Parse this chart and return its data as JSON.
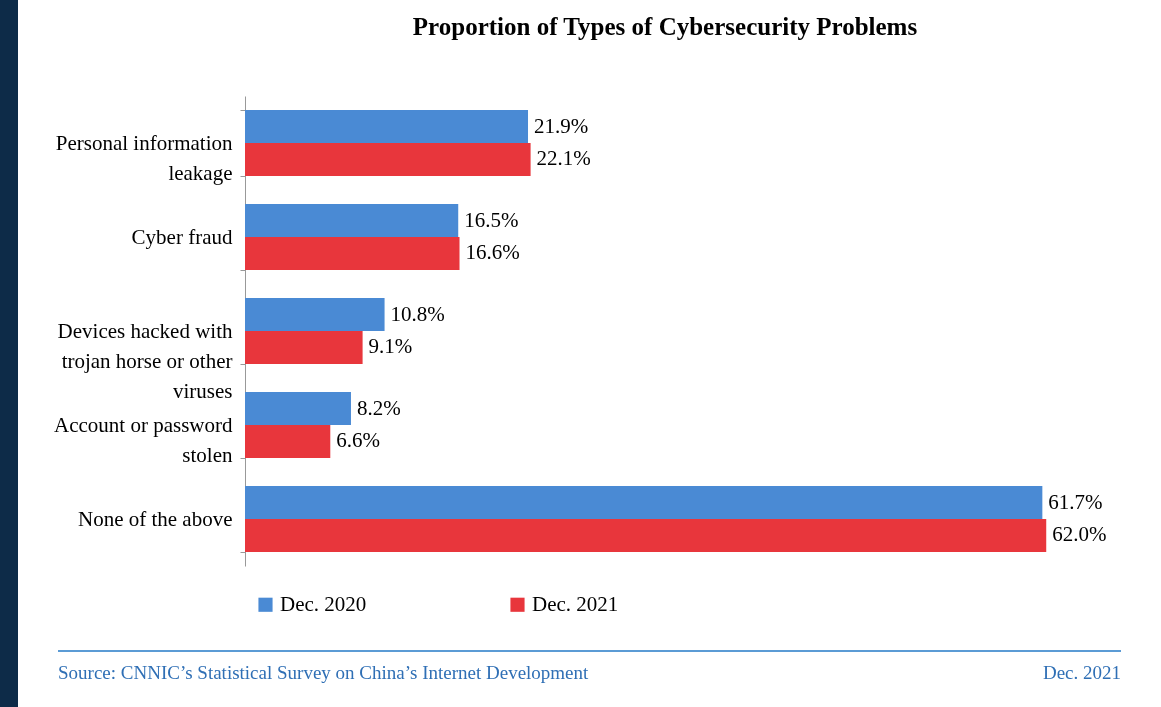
{
  "chart_data": {
    "type": "bar",
    "orientation": "horizontal",
    "title": "Proportion of Types of Cybersecurity Problems",
    "categories": [
      "Personal information leakage",
      "Cyber fraud",
      "Devices hacked with trojan horse or other viruses",
      "Account or password stolen",
      "None of the above"
    ],
    "series": [
      {
        "name": "Dec. 2020",
        "color": "#4a8ad4",
        "values": [
          21.9,
          16.5,
          10.8,
          8.2,
          61.7
        ],
        "value_labels": [
          "21.9%",
          "16.5%",
          "10.8%",
          "8.2%",
          "61.7%"
        ]
      },
      {
        "name": "Dec. 2021",
        "color": "#e8363c",
        "values": [
          22.1,
          16.6,
          9.1,
          6.6,
          62.0
        ],
        "value_labels": [
          "22.1%",
          "16.6%",
          "9.1%",
          "6.6%",
          "62.0%"
        ]
      }
    ],
    "legend": "bottom",
    "annotations": [
      "Source: CNNIC’s Statistical Survey on China’s Internet Development",
      "Dec. 2021"
    ]
  }
}
